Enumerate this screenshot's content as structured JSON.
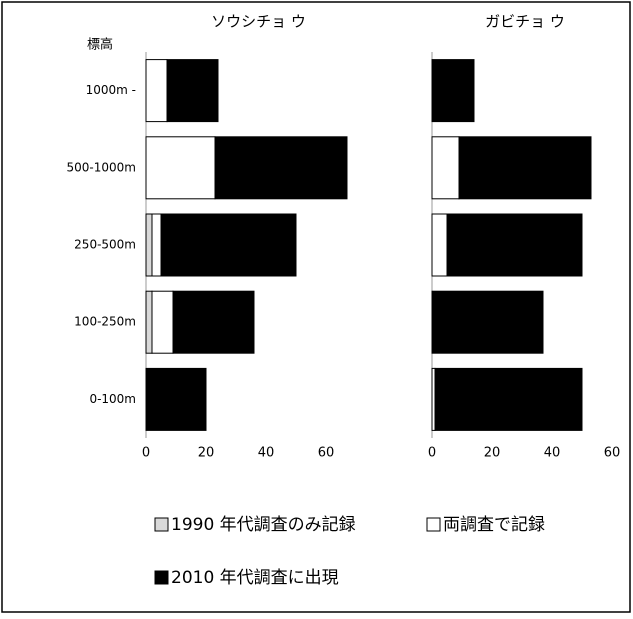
{
  "chart_data": [
    {
      "type": "bar",
      "title": "ソウシチョ ウ",
      "ylabel": "標高",
      "categories": [
        "1000m -",
        "500-1000m",
        "250-500m",
        "100-250m",
        "0-100m"
      ],
      "series": [
        {
          "name": "1990 年代調査のみ記録",
          "color": "#d9d9d9",
          "values": [
            0,
            0,
            2,
            2,
            0
          ]
        },
        {
          "name": "両調査で記録",
          "color": "#ffffff",
          "values": [
            7,
            23,
            3,
            7,
            0
          ]
        },
        {
          "name": "2010 年代調査に出現",
          "color": "#000000",
          "values": [
            17,
            44,
            45,
            27,
            20
          ]
        }
      ],
      "xlim": [
        0,
        75
      ],
      "xticks": [
        0,
        20,
        40,
        60
      ]
    },
    {
      "type": "bar",
      "title": "ガビチョ ウ",
      "series": [
        {
          "color": "#d9d9d9",
          "values": [
            0,
            0,
            0,
            0,
            0
          ]
        },
        {
          "color": "#ffffff",
          "values": [
            0,
            9,
            5,
            0,
            1
          ]
        },
        {
          "color": "#000000",
          "values": [
            14,
            44,
            45,
            37,
            49
          ]
        }
      ],
      "xlim": [
        0,
        62
      ],
      "xticks": [
        0,
        20,
        40,
        60
      ]
    }
  ]
}
